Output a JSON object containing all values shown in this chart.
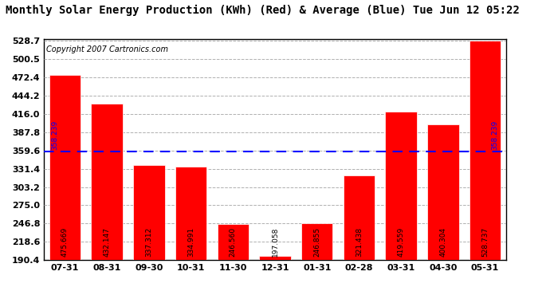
{
  "title": "Monthly Solar Energy Production (KWh) (Red) & Average (Blue) Tue Jun 12 05:22",
  "copyright": "Copyright 2007 Cartronics.com",
  "categories": [
    "07-31",
    "08-31",
    "09-30",
    "10-31",
    "11-30",
    "12-31",
    "01-31",
    "02-28",
    "03-31",
    "04-30",
    "05-31"
  ],
  "values": [
    475.669,
    432.147,
    337.312,
    334.991,
    246.56,
    197.058,
    246.855,
    321.438,
    419.559,
    400.304,
    528.737
  ],
  "average": 358.239,
  "bar_color": "#ff0000",
  "avg_line_color": "#0000ff",
  "bar_edge_color": "#ffffff",
  "background_color": "#ffffff",
  "plot_bg_color": "#ffffff",
  "grid_color": "#b0b0b0",
  "title_color": "#000000",
  "copyright_color": "#000000",
  "ytick_vals": [
    190.4,
    218.6,
    246.8,
    275.0,
    303.2,
    331.4,
    359.6,
    387.8,
    416.0,
    444.2,
    472.4,
    500.5,
    528.7
  ],
  "ytick_labels": [
    "190.4",
    "218.6",
    "246.8",
    "275.0",
    "303.2",
    "331.4",
    "359.6",
    "387.8",
    "416.0",
    "444.2",
    "472.4",
    "500.5",
    "528.7"
  ],
  "ymin": 190.4,
  "ymax": 528.7,
  "value_label_color": "#000000",
  "avg_label": "358.239",
  "title_fontsize": 10,
  "copyright_fontsize": 7,
  "bar_label_fontsize": 6.5,
  "tick_fontsize": 8,
  "xtick_fontsize": 8
}
